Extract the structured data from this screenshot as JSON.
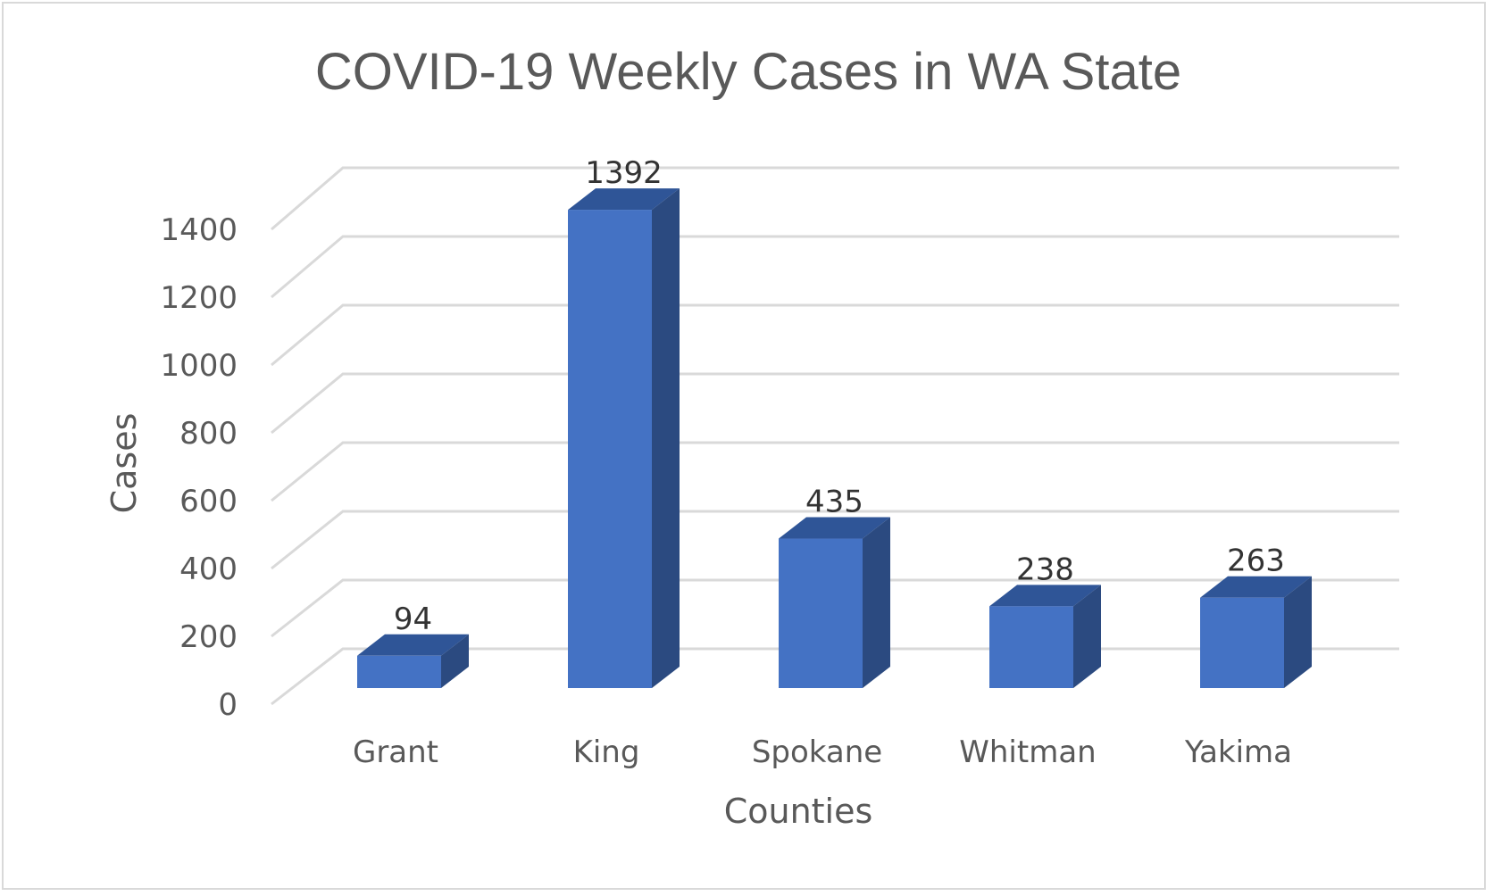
{
  "chart_data": {
    "type": "bar",
    "style": "3d-column",
    "title": "COVID-19 Weekly Cases in WA State",
    "xlabel": "Counties",
    "ylabel": "Cases",
    "categories": [
      "Grant",
      "King",
      "Spokane",
      "Whitman",
      "Yakima"
    ],
    "values": [
      94,
      1392,
      435,
      238,
      263
    ],
    "data_labels": [
      "94",
      "1392",
      "435",
      "238",
      "263"
    ],
    "ylim": [
      0,
      1400
    ],
    "yticks": [
      "0",
      "200",
      "400",
      "600",
      "800",
      "1000",
      "1200",
      "1400"
    ],
    "grid": true,
    "legend": "none",
    "colors": {
      "bar_front": "#4472c4",
      "bar_side": "#2b4a80",
      "bar_top": "#2f5597",
      "grid": "#d9d9d9",
      "text": "#595959"
    }
  }
}
